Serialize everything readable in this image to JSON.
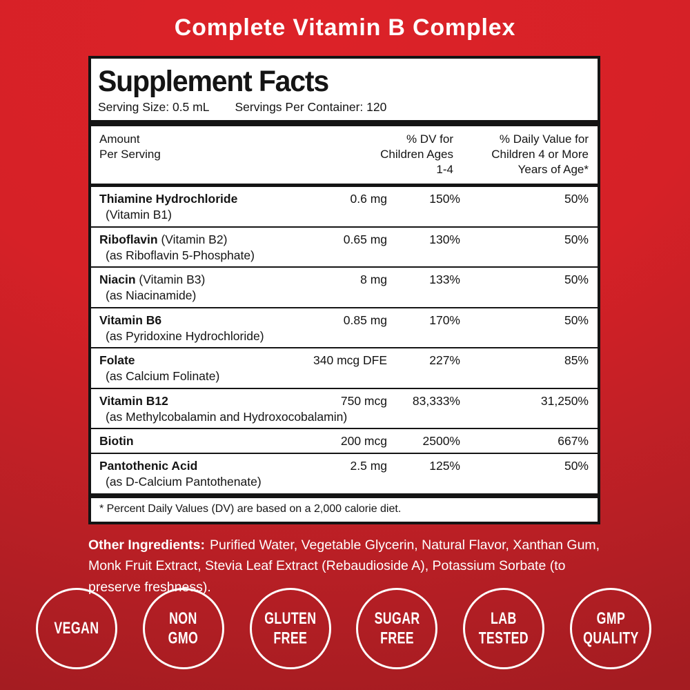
{
  "page": {
    "title": "Complete Vitamin B Complex"
  },
  "panel": {
    "title": "Supplement Facts",
    "serving_size": "Serving Size: 0.5 mL",
    "servings_per_container": "Servings Per Container: 120",
    "header": {
      "amount_line1": "Amount",
      "amount_line2": "Per Serving",
      "dv1_line1": "% DV for",
      "dv1_line2": "Children Ages",
      "dv1_line3": "1-4",
      "dv2_line1": "% Daily Value for",
      "dv2_line2": "Children 4 or More",
      "dv2_line3": "Years of Age*"
    },
    "rows": [
      {
        "name": "Thiamine Hydrochloride",
        "name_note": "",
        "sub": "(Vitamin B1)",
        "amount": "0.6 mg",
        "dv1": "150%",
        "dv2": "50%"
      },
      {
        "name": "Riboflavin",
        "name_note": " (Vitamin B2)",
        "sub": "(as Riboflavin 5-Phosphate)",
        "amount": "0.65 mg",
        "dv1": "130%",
        "dv2": "50%"
      },
      {
        "name": "Niacin",
        "name_note": " (Vitamin B3)",
        "sub": "(as Niacinamide)",
        "amount": "8 mg",
        "dv1": "133%",
        "dv2": "50%"
      },
      {
        "name": "Vitamin B6",
        "name_note": "",
        "sub": "(as Pyridoxine Hydrochloride)",
        "amount": "0.85 mg",
        "dv1": "170%",
        "dv2": "50%"
      },
      {
        "name": "Folate",
        "name_note": "",
        "sub": "(as Calcium Folinate)",
        "amount": "340 mcg DFE",
        "dv1": "227%",
        "dv2": "85%"
      },
      {
        "name": "Vitamin B12",
        "name_note": "",
        "sub": "(as Methylcobalamin and Hydroxocobalamin)",
        "amount": "750 mcg",
        "dv1": "83,333%",
        "dv2": "31,250%"
      },
      {
        "name": "Biotin",
        "name_note": "",
        "sub": "",
        "amount": "200 mcg",
        "dv1": "2500%",
        "dv2": "667%"
      },
      {
        "name": "Pantothenic Acid",
        "name_note": "",
        "sub": "(as D-Calcium Pantothenate)",
        "amount": "2.5 mg",
        "dv1": "125%",
        "dv2": "50%"
      }
    ],
    "footnote": "* Percent Daily Values (DV) are based on a 2,000 calorie diet."
  },
  "other_ingredients": {
    "label": "Other Ingredients:",
    "text": "Purified Water, Vegetable Glycerin, Natural Flavor, Xanthan Gum, Monk Fruit Extract, Stevia Leaf Extract (Rebaudioside A), Potassium Sorbate (to preserve freshness)."
  },
  "badges": [
    {
      "line1": "VEGAN",
      "line2": ""
    },
    {
      "line1": "NON",
      "line2": "GMO"
    },
    {
      "line1": "GLUTEN",
      "line2": "FREE"
    },
    {
      "line1": "SUGAR",
      "line2": "FREE"
    },
    {
      "line1": "LAB",
      "line2": "TESTED"
    },
    {
      "line1": "GMP",
      "line2": "QUALITY"
    }
  ],
  "colors": {
    "background_red_bright": "#DC2228",
    "background_red_dark": "#A41C21",
    "panel_background": "#FFFFFF",
    "panel_border": "#141414",
    "text_dark": "#141414",
    "text_white": "#FFFFFF"
  }
}
